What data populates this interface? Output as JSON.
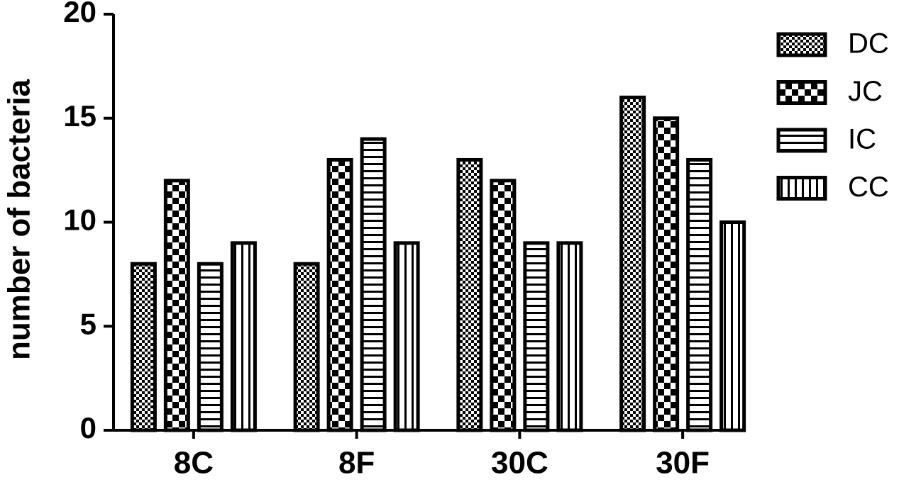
{
  "chart_data": {
    "type": "bar",
    "y_label": "number of bacteria",
    "categories": [
      "8C",
      "8F",
      "30C",
      "30F"
    ],
    "series": [
      {
        "name": "DC",
        "color": "#000000",
        "values": [
          8,
          8,
          13,
          16
        ]
      },
      {
        "name": "JC",
        "color": "#000000",
        "values": [
          12,
          13,
          12,
          15
        ]
      },
      {
        "name": "IC",
        "color": "#000000",
        "values": [
          8,
          14,
          9,
          13
        ]
      },
      {
        "name": "CC",
        "color": "#000000",
        "values": [
          9,
          9,
          9,
          10
        ]
      }
    ],
    "ylim": [
      0,
      20
    ],
    "yticks": [
      0,
      5,
      10,
      15,
      20
    ],
    "grid": false,
    "legend": "right"
  }
}
